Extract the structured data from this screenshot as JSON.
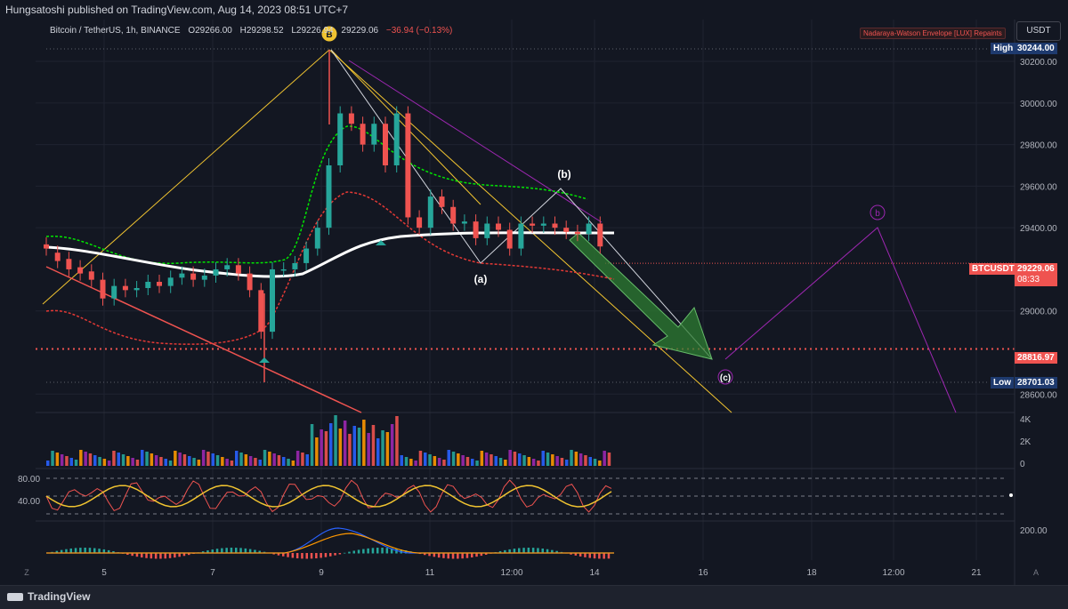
{
  "header": {
    "publisher": "Hungsatoshi published on TradingView.com, Aug 14, 2023 08:51 UTC+7",
    "symbol": "Bitcoin / TetherUS, 1h, BINANCE",
    "open": "O29266.00",
    "high": "H29298.52",
    "low": "L29226.94",
    "close": "29229.06",
    "change": "−36.94 (−0.13%)",
    "currency_button": "USDT",
    "indicator_label": "Nadaraya-Watson Envelope [LUX] Repaints"
  },
  "footer": {
    "brand": "TradingView",
    "left_button": "Z",
    "right_button": "A"
  },
  "colors": {
    "background": "#131722",
    "up_candle": "#26a69a",
    "down_candle": "#ef5350",
    "upper_envelope": "#00e600",
    "lower_envelope": "#e53935",
    "basis": "#ffffff",
    "yellow_lines": "#f0c330",
    "purple_lines": "#9c27b0",
    "arrow": "#2e7d32"
  },
  "chart_data": {
    "type": "candlestick",
    "x_ticks": [
      "5",
      "7",
      "9",
      "11",
      "12:00",
      "14",
      "16",
      "18",
      "12:00",
      "21"
    ],
    "y_ticks": [
      "30200.00",
      "30000.00",
      "29800.00",
      "29600.00",
      "29400.00",
      "29000.00",
      "28600.00"
    ],
    "y_range": [
      28520,
      30290
    ],
    "price_labels": {
      "high_label": "High",
      "high_value": "30244.00",
      "low_label": "Low",
      "low_value": "28701.03",
      "current_symbol": "BTCUSDT",
      "current_value": "29229.06",
      "countdown": "08:33",
      "support_value": "28816.97"
    },
    "wave_labels": {
      "b_circle": "B",
      "a": "(a)",
      "b": "(b)",
      "c": "(c)",
      "b_future": "b"
    },
    "volume_ticks": [
      "4K",
      "2K",
      "0"
    ],
    "oscillator_ticks": [
      "80.00",
      "40.00"
    ],
    "macd_ticks": [
      "200.00"
    ],
    "price_path": [
      [
        29320,
        29300
      ],
      [
        29280,
        29240
      ],
      [
        29250,
        29200
      ],
      [
        29210,
        29180
      ],
      [
        29190,
        29150
      ],
      [
        29150,
        29060
      ],
      [
        29060,
        29120
      ],
      [
        29120,
        29100
      ],
      [
        29100,
        29110
      ],
      [
        29110,
        29140
      ],
      [
        29140,
        29120
      ],
      [
        29120,
        29160
      ],
      [
        29160,
        29180
      ],
      [
        29180,
        29150
      ],
      [
        29150,
        29170
      ],
      [
        29170,
        29200
      ],
      [
        29200,
        29220
      ],
      [
        29220,
        29180
      ],
      [
        29180,
        29100
      ],
      [
        29100,
        28900
      ],
      [
        28900,
        29200
      ],
      [
        29200,
        29200
      ],
      [
        29200,
        29230
      ],
      [
        29230,
        29300
      ],
      [
        29300,
        29400
      ],
      [
        29400,
        29700
      ],
      [
        29700,
        29950
      ],
      [
        29950,
        29900
      ],
      [
        29900,
        29800
      ],
      [
        29800,
        29900
      ],
      [
        29900,
        29700
      ],
      [
        29700,
        29950
      ],
      [
        29950,
        29450
      ],
      [
        29450,
        29400
      ],
      [
        29400,
        29550
      ],
      [
        29550,
        29500
      ],
      [
        29500,
        29420
      ],
      [
        29420,
        29430
      ],
      [
        29430,
        29350
      ],
      [
        29350,
        29420
      ],
      [
        29420,
        29390
      ],
      [
        29390,
        29300
      ],
      [
        29300,
        29420
      ],
      [
        29420,
        29410
      ],
      [
        29410,
        29420
      ],
      [
        29420,
        29400
      ],
      [
        29400,
        29380
      ],
      [
        29380,
        29370
      ],
      [
        29370,
        29420
      ],
      [
        29420,
        29310
      ]
    ]
  }
}
